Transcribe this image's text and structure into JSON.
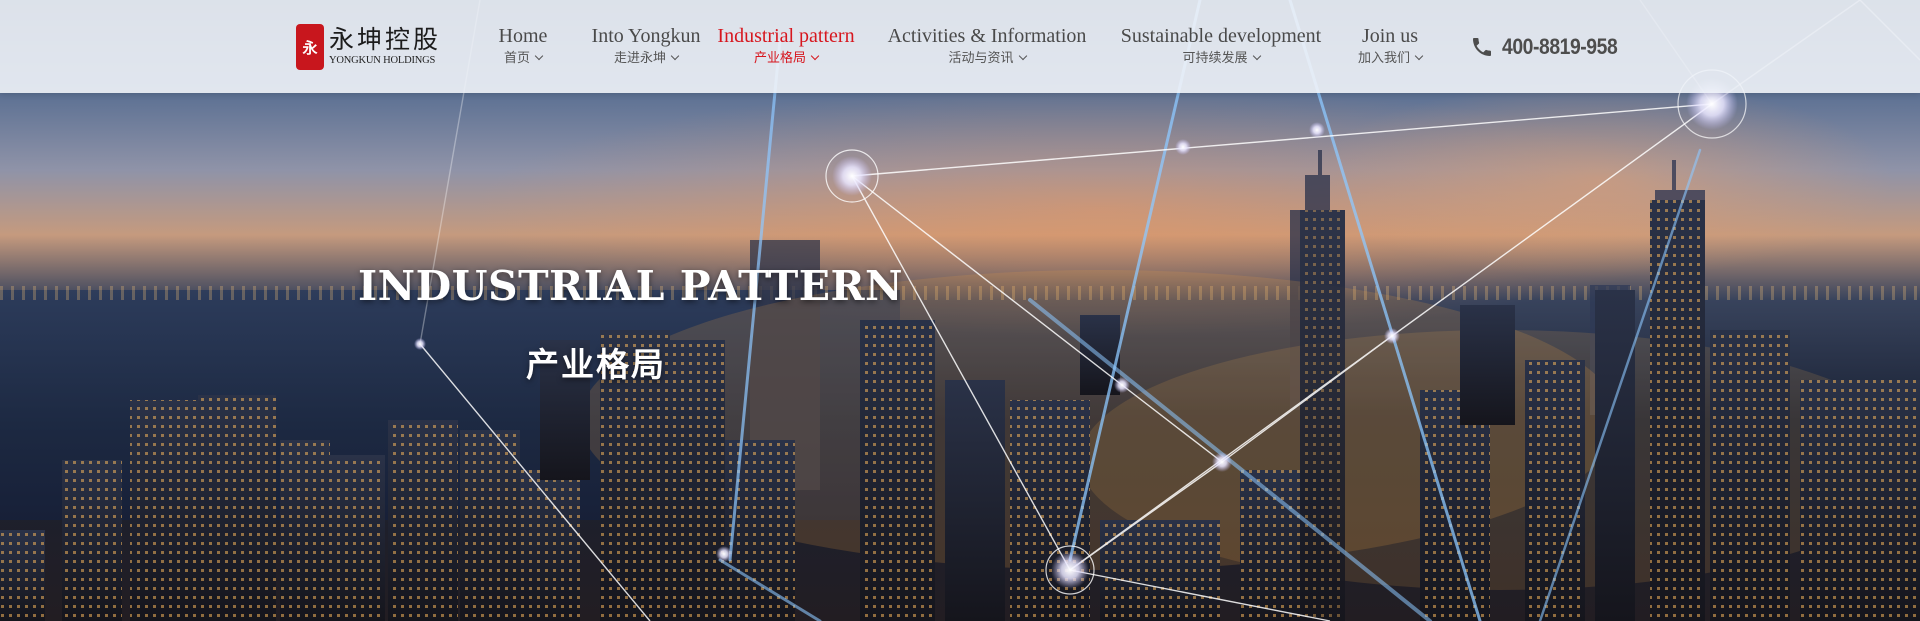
{
  "brand": {
    "name_cn": "永坤控股",
    "name_en": "YONGKUN HOLDINGS",
    "accent": "#d7161e"
  },
  "nav": {
    "items": [
      {
        "en": "Home",
        "cn": "首页",
        "active": false
      },
      {
        "en": "Into Yongkun",
        "cn": "走进永坤",
        "active": false
      },
      {
        "en": "Industrial pattern",
        "cn": "产业格局",
        "active": true
      },
      {
        "en": "Activities & Information",
        "cn": "活动与资讯",
        "active": false
      },
      {
        "en": "Sustainable development",
        "cn": "可持续发展",
        "active": false
      },
      {
        "en": "Join us",
        "cn": "加入我们",
        "active": false
      }
    ]
  },
  "contact": {
    "icon": "phone-icon",
    "phone": "400-8819-958"
  },
  "hero": {
    "title_en": "INDUSTRIAL PATTERN",
    "title_cn": "产业格局"
  }
}
